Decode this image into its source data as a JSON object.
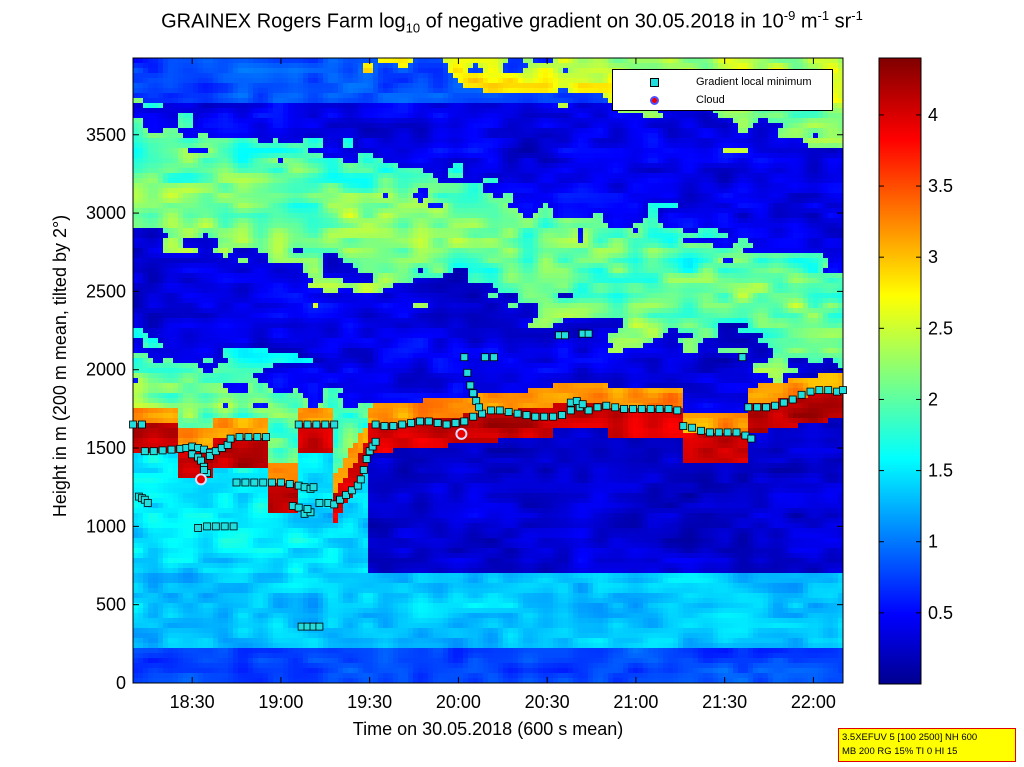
{
  "title": {
    "prefix": "GRAINEX Rogers Farm log",
    "sub": "10",
    "middle": " of negative gradient on 30.05.2018 in 10",
    "sup1": "-9",
    "mid2": " m",
    "sup2": "-1",
    "mid3": " sr",
    "sup3": "-1"
  },
  "info_box": {
    "line1": "3.5XEFUV 5 [100 2500] NH 600",
    "line2": "MB 200 RG 15% TI 0 HI 15"
  },
  "legend": {
    "items": [
      {
        "label": "Gradient local minimum",
        "color": "#22dddd"
      },
      {
        "label": "Cloud",
        "color": "#ee0000"
      }
    ]
  },
  "chart_data": {
    "type": "heatmap",
    "title": "GRAINEX Rogers Farm log10 of negative gradient on 30.05.2018 in 10^-9 m^-1 sr^-1",
    "xlabel": "Time on 30.05.2018 (600 s mean)",
    "ylabel": "Height in m (200 m mean, tilted by 2°)",
    "x_ticks": [
      "18:30",
      "19:00",
      "19:30",
      "20:00",
      "20:30",
      "21:00",
      "21:30",
      "22:00"
    ],
    "x_tick_minutes": [
      1110,
      1140,
      1170,
      1200,
      1230,
      1260,
      1290,
      1320
    ],
    "xlim_minutes": [
      1090,
      1330
    ],
    "y_ticks": [
      0,
      500,
      1000,
      1500,
      2000,
      2500,
      3000,
      3500
    ],
    "ylim": [
      0,
      3990
    ],
    "colorbar": {
      "ticks": [
        "0.5",
        "1",
        "1.5",
        "2",
        "2.5",
        "3",
        "3.5",
        "4"
      ],
      "tick_values": [
        0.5,
        1,
        1.5,
        2,
        2.5,
        3,
        3.5,
        4
      ],
      "range": [
        0,
        4.4
      ],
      "colormap": "jet"
    },
    "series": [
      {
        "name": "Gradient local minimum",
        "points": [
          [
            1090,
            1650
          ],
          [
            1093,
            1650
          ],
          [
            1092,
            1190
          ],
          [
            1093,
            1180
          ],
          [
            1094,
            1170
          ],
          [
            1095,
            1150
          ],
          [
            1094,
            1480
          ],
          [
            1097,
            1480
          ],
          [
            1100,
            1485
          ],
          [
            1103,
            1490
          ],
          [
            1106,
            1495
          ],
          [
            1108,
            1500
          ],
          [
            1110,
            1510
          ],
          [
            1112,
            1500
          ],
          [
            1114,
            1490
          ],
          [
            1116,
            1470
          ],
          [
            1110,
            1460
          ],
          [
            1112,
            1440
          ],
          [
            1113,
            1420
          ],
          [
            1114,
            1380
          ],
          [
            1115,
            1340
          ],
          [
            1114,
            1360
          ],
          [
            1112,
            990
          ],
          [
            1115,
            1000
          ],
          [
            1118,
            1000
          ],
          [
            1121,
            1000
          ],
          [
            1124,
            1000
          ],
          [
            1116,
            1450
          ],
          [
            1118,
            1480
          ],
          [
            1120,
            1500
          ],
          [
            1122,
            1520
          ],
          [
            1123,
            1560
          ],
          [
            1126,
            1570
          ],
          [
            1129,
            1570
          ],
          [
            1132,
            1570
          ],
          [
            1135,
            1570
          ],
          [
            1125,
            1280
          ],
          [
            1128,
            1280
          ],
          [
            1131,
            1280
          ],
          [
            1134,
            1280
          ],
          [
            1137,
            1280
          ],
          [
            1140,
            1280
          ],
          [
            1143,
            1270
          ],
          [
            1146,
            1260
          ],
          [
            1148,
            1250
          ],
          [
            1150,
            1240
          ],
          [
            1151,
            1250
          ],
          [
            1144,
            1130
          ],
          [
            1146,
            1120
          ],
          [
            1148,
            1080
          ],
          [
            1150,
            1090
          ],
          [
            1149,
            1110
          ],
          [
            1146,
            1650
          ],
          [
            1149,
            1650
          ],
          [
            1152,
            1650
          ],
          [
            1155,
            1650
          ],
          [
            1158,
            1650
          ],
          [
            1147,
            360
          ],
          [
            1149,
            360
          ],
          [
            1151,
            360
          ],
          [
            1153,
            360
          ],
          [
            1153,
            1150
          ],
          [
            1156,
            1150
          ],
          [
            1158,
            1140
          ],
          [
            1160,
            1170
          ],
          [
            1162,
            1200
          ],
          [
            1164,
            1230
          ],
          [
            1166,
            1260
          ],
          [
            1167,
            1300
          ],
          [
            1168,
            1360
          ],
          [
            1169,
            1430
          ],
          [
            1170,
            1480
          ],
          [
            1171,
            1510
          ],
          [
            1172,
            1540
          ],
          [
            1172,
            1650
          ],
          [
            1175,
            1640
          ],
          [
            1178,
            1640
          ],
          [
            1181,
            1650
          ],
          [
            1184,
            1660
          ],
          [
            1187,
            1670
          ],
          [
            1190,
            1670
          ],
          [
            1193,
            1660
          ],
          [
            1196,
            1650
          ],
          [
            1199,
            1660
          ],
          [
            1202,
            1670
          ],
          [
            1205,
            1700
          ],
          [
            1208,
            1720
          ],
          [
            1211,
            1740
          ],
          [
            1214,
            1740
          ],
          [
            1217,
            1730
          ],
          [
            1220,
            1720
          ],
          [
            1223,
            1710
          ],
          [
            1226,
            1700
          ],
          [
            1229,
            1700
          ],
          [
            1232,
            1700
          ],
          [
            1235,
            1710
          ],
          [
            1238,
            1740
          ],
          [
            1241,
            1760
          ],
          [
            1244,
            1740
          ],
          [
            1247,
            1760
          ],
          [
            1250,
            1770
          ],
          [
            1253,
            1760
          ],
          [
            1256,
            1750
          ],
          [
            1259,
            1750
          ],
          [
            1262,
            1750
          ],
          [
            1265,
            1750
          ],
          [
            1268,
            1750
          ],
          [
            1271,
            1750
          ],
          [
            1274,
            1740
          ],
          [
            1202,
            2080
          ],
          [
            1203,
            1980
          ],
          [
            1204,
            1900
          ],
          [
            1205,
            1850
          ],
          [
            1206,
            1800
          ],
          [
            1207,
            1760
          ],
          [
            1209,
            2080
          ],
          [
            1212,
            2080
          ],
          [
            1234,
            2220
          ],
          [
            1236,
            2220
          ],
          [
            1242,
            2230
          ],
          [
            1244,
            2230
          ],
          [
            1238,
            1790
          ],
          [
            1240,
            1800
          ],
          [
            1242,
            1780
          ],
          [
            1276,
            1640
          ],
          [
            1279,
            1630
          ],
          [
            1282,
            1610
          ],
          [
            1285,
            1600
          ],
          [
            1288,
            1600
          ],
          [
            1291,
            1600
          ],
          [
            1294,
            1600
          ],
          [
            1297,
            1580
          ],
          [
            1299,
            1560
          ],
          [
            1296,
            2080
          ],
          [
            1298,
            1760
          ],
          [
            1301,
            1760
          ],
          [
            1304,
            1760
          ],
          [
            1307,
            1770
          ],
          [
            1310,
            1790
          ],
          [
            1313,
            1810
          ],
          [
            1316,
            1840
          ],
          [
            1319,
            1860
          ],
          [
            1322,
            1870
          ],
          [
            1325,
            1870
          ],
          [
            1328,
            1860
          ],
          [
            1330,
            1870
          ]
        ]
      },
      {
        "name": "Cloud",
        "points": [
          [
            1113,
            1300
          ],
          [
            1201,
            1590
          ]
        ]
      }
    ]
  }
}
